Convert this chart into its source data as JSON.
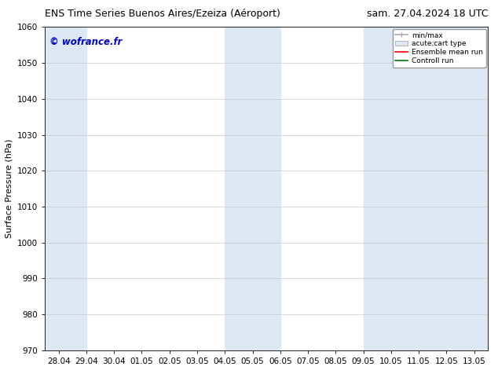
{
  "title_left": "ENS Time Series Buenos Aires/Ezeiza (Aéroport)",
  "title_right": "sam. 27.04.2024 18 UTC",
  "ylabel": "Surface Pressure (hPa)",
  "ylim": [
    970,
    1060
  ],
  "yticks": [
    970,
    980,
    990,
    1000,
    1010,
    1020,
    1030,
    1040,
    1050,
    1060
  ],
  "xticklabels": [
    "28.04",
    "29.04",
    "30.04",
    "01.05",
    "02.05",
    "03.05",
    "04.05",
    "05.05",
    "06.05",
    "07.05",
    "08.05",
    "09.05",
    "10.05",
    "11.05",
    "12.05",
    "13.05"
  ],
  "xtick_values": [
    0,
    1,
    2,
    3,
    4,
    5,
    6,
    7,
    8,
    9,
    10,
    11,
    12,
    13,
    14,
    15
  ],
  "xlim": [
    -0.5,
    15.5
  ],
  "shaded_bands": [
    {
      "x_start": -0.5,
      "x_end": 1.0,
      "color": "#dce9f5"
    },
    {
      "x_start": 6.0,
      "x_end": 8.0,
      "color": "#dce9f5"
    },
    {
      "x_start": 11.0,
      "x_end": 15.5,
      "color": "#dce9f5"
    }
  ],
  "watermark": "© wofrance.fr",
  "watermark_color": "#0000cc",
  "watermark_fontsize": 8.5,
  "legend_labels": [
    "min/max",
    "acute;cart type",
    "Ensemble mean run",
    "Controll run"
  ],
  "bg_color": "#ffffff",
  "plot_bg_color": "#ffffff",
  "grid_color": "#cccccc",
  "title_fontsize": 9,
  "axis_label_fontsize": 8,
  "tick_fontsize": 7.5
}
